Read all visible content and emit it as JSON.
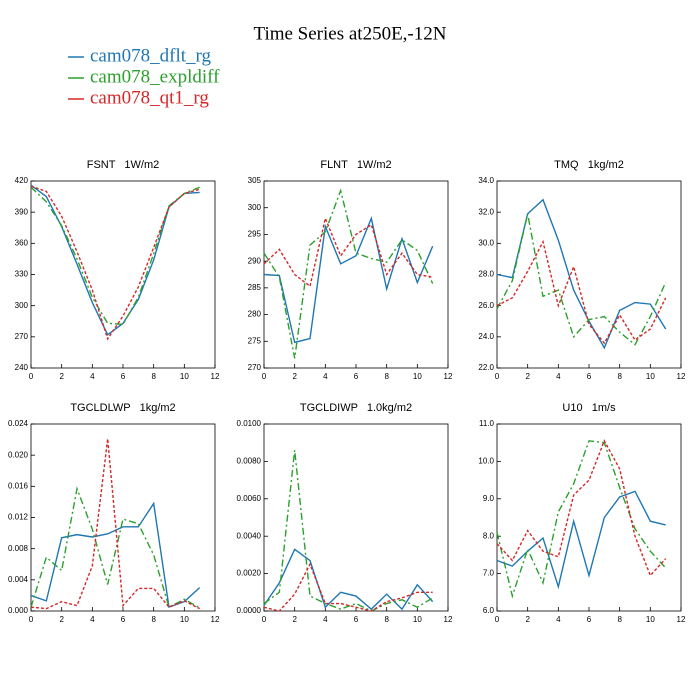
{
  "title": "Time Series at250E,-12N",
  "legend": [
    {
      "name": "cam078_dflt_rg",
      "color": "#1f77b4"
    },
    {
      "name": "cam078_expldiff",
      "color": "#2ca02c"
    },
    {
      "name": "cam078_qt1_rg",
      "color": "#d62728"
    }
  ],
  "chart_data": [
    {
      "type": "line",
      "title": "FSNT   1W/m2",
      "x": [
        0,
        1,
        2,
        3,
        4,
        5,
        6,
        7,
        8,
        9,
        10,
        11
      ],
      "xlim": [
        0,
        12
      ],
      "xticks": [
        0,
        2,
        4,
        6,
        8,
        10,
        12
      ],
      "ylim": [
        240,
        420
      ],
      "yticks": [
        240,
        270,
        300,
        330,
        360,
        390,
        420
      ],
      "series": [
        {
          "color": "#1f77b4",
          "values": [
            416,
            405,
            376,
            340,
            303,
            272,
            283,
            306,
            344,
            395,
            408,
            409
          ]
        },
        {
          "color": "#2ca02c",
          "values": [
            414,
            400,
            377,
            345,
            308,
            283,
            282,
            308,
            350,
            396,
            408,
            414
          ]
        },
        {
          "color": "#d62728",
          "values": [
            415,
            410,
            386,
            352,
            315,
            268,
            290,
            318,
            356,
            395,
            408,
            412
          ]
        }
      ]
    },
    {
      "type": "line",
      "title": "FLNT   1W/m2",
      "x": [
        0,
        1,
        2,
        3,
        4,
        5,
        6,
        7,
        8,
        9,
        10,
        11
      ],
      "xlim": [
        0,
        12
      ],
      "xticks": [
        0,
        2,
        4,
        6,
        8,
        10,
        12
      ],
      "ylim": [
        270,
        305
      ],
      "yticks": [
        270,
        275,
        280,
        285,
        290,
        295,
        300,
        305
      ],
      "series": [
        {
          "color": "#1f77b4",
          "values": [
            287.5,
            287.3,
            274.8,
            275.5,
            296.5,
            289.5,
            291,
            298,
            284.8,
            294.2,
            286,
            292.8
          ]
        },
        {
          "color": "#2ca02c",
          "values": [
            291.5,
            287,
            271.8,
            293,
            295.5,
            303.2,
            291.5,
            290.5,
            289.8,
            294,
            292,
            285.8
          ]
        },
        {
          "color": "#d62728",
          "values": [
            289.5,
            292.2,
            287.5,
            285.3,
            298,
            291,
            295,
            296.8,
            287.5,
            291.5,
            287.5,
            287
          ]
        }
      ]
    },
    {
      "type": "line",
      "title": "TMQ   1kg/m2",
      "x": [
        0,
        1,
        2,
        3,
        4,
        5,
        6,
        7,
        8,
        9,
        10,
        11
      ],
      "xlim": [
        0,
        12
      ],
      "xticks": [
        0,
        2,
        4,
        6,
        8,
        10,
        12
      ],
      "ylim": [
        22,
        34
      ],
      "yticks": [
        {
          "value": 22,
          "label": "22.0"
        },
        {
          "value": 24,
          "label": "24.0"
        },
        {
          "value": 26,
          "label": "26.0"
        },
        {
          "value": 28,
          "label": "28.0"
        },
        {
          "value": 30,
          "label": "30.0"
        },
        {
          "value": 32,
          "label": "32.0"
        },
        {
          "value": 34,
          "label": "34.0"
        }
      ],
      "series": [
        {
          "color": "#1f77b4",
          "values": [
            28.0,
            27.8,
            31.9,
            32.8,
            30.2,
            27.0,
            25.0,
            23.3,
            25.7,
            26.2,
            26.1,
            24.5
          ]
        },
        {
          "color": "#2ca02c",
          "values": [
            25.8,
            27.6,
            31.9,
            26.6,
            27.0,
            24.0,
            25.1,
            25.3,
            24.3,
            23.5,
            25.3,
            27.5
          ]
        },
        {
          "color": "#d62728",
          "values": [
            26.0,
            26.5,
            28.2,
            30.1,
            26.0,
            28.5,
            24.8,
            23.6,
            25.4,
            23.8,
            24.5,
            26.5
          ]
        }
      ]
    },
    {
      "type": "line",
      "title": "TGCLDLWP   1kg/m2",
      "x": [
        0,
        1,
        2,
        3,
        4,
        5,
        6,
        7,
        8,
        9,
        10,
        11
      ],
      "xlim": [
        0,
        12
      ],
      "xticks": [
        0,
        2,
        4,
        6,
        8,
        10,
        12
      ],
      "ylim": [
        0,
        0.024
      ],
      "yticks": [
        {
          "value": 0,
          "label": "0.000"
        },
        {
          "value": 0.004,
          "label": "0.004"
        },
        {
          "value": 0.008,
          "label": "0.008"
        },
        {
          "value": 0.012,
          "label": "0.012"
        },
        {
          "value": 0.016,
          "label": "0.016"
        },
        {
          "value": 0.02,
          "label": "0.020"
        },
        {
          "value": 0.024,
          "label": "0.024"
        }
      ],
      "series": [
        {
          "color": "#1f77b4",
          "values": [
            0.002,
            0.0013,
            0.0094,
            0.0098,
            0.0095,
            0.0099,
            0.0108,
            0.0108,
            0.0138,
            0.0005,
            0.0012,
            0.003
          ]
        },
        {
          "color": "#2ca02c",
          "values": [
            0.0005,
            0.0069,
            0.0052,
            0.0157,
            0.0105,
            0.0034,
            0.0118,
            0.0112,
            0.0072,
            0.0005,
            0.0015,
            0.0004
          ]
        },
        {
          "color": "#d62728",
          "values": [
            0.0005,
            0.0003,
            0.0012,
            0.0007,
            0.0058,
            0.0221,
            0.0007,
            0.0029,
            0.0029,
            0.0005,
            0.0013,
            0.0003
          ]
        }
      ]
    },
    {
      "type": "line",
      "title": "TGCLDIWP   1.0kg/m2",
      "x": [
        0,
        1,
        2,
        3,
        4,
        5,
        6,
        7,
        8,
        9,
        10,
        11
      ],
      "xlim": [
        0,
        12
      ],
      "xticks": [
        0,
        2,
        4,
        6,
        8,
        10,
        12
      ],
      "ylim": [
        0,
        0.01
      ],
      "yticks": [
        {
          "value": 0,
          "label": "0.0000"
        },
        {
          "value": 0.002,
          "label": "0.0020"
        },
        {
          "value": 0.004,
          "label": "0.0040"
        },
        {
          "value": 0.006,
          "label": "0.0060"
        },
        {
          "value": 0.008,
          "label": "0.0080"
        },
        {
          "value": 0.01,
          "label": "0.0100"
        }
      ],
      "series": [
        {
          "color": "#1f77b4",
          "values": [
            0.0003,
            0.0015,
            0.0033,
            0.0027,
            0.0002,
            0.001,
            0.0008,
            0.0001,
            0.0009,
            0.0001,
            0.0014,
            0.0005
          ]
        },
        {
          "color": "#2ca02c",
          "values": [
            0.0004,
            0.001,
            0.0086,
            0.0008,
            0.0004,
            0.0001,
            0.0004,
            0,
            0.0004,
            0.0006,
            0.0002,
            0.0007
          ]
        },
        {
          "color": "#d62728",
          "values": [
            0.0002,
            0,
            0.0009,
            0.0025,
            0.0004,
            0.0004,
            0.0002,
            0,
            0.0005,
            0.0007,
            0.001,
            0.001
          ]
        }
      ]
    },
    {
      "type": "line",
      "title": "U10   1m/s",
      "x": [
        0,
        1,
        2,
        3,
        4,
        5,
        6,
        7,
        8,
        9,
        10,
        11
      ],
      "xlim": [
        0,
        12
      ],
      "xticks": [
        0,
        2,
        4,
        6,
        8,
        10,
        12
      ],
      "ylim": [
        6,
        11
      ],
      "yticks": [
        {
          "value": 6,
          "label": "6.0"
        },
        {
          "value": 7,
          "label": "7.0"
        },
        {
          "value": 8,
          "label": "8.0"
        },
        {
          "value": 9,
          "label": "9.0"
        },
        {
          "value": 10,
          "label": "10.0"
        },
        {
          "value": 11,
          "label": "11.0"
        }
      ],
      "series": [
        {
          "color": "#1f77b4",
          "values": [
            7.35,
            7.2,
            7.6,
            7.95,
            6.65,
            8.4,
            6.95,
            8.5,
            9.05,
            9.2,
            8.4,
            8.3
          ]
        },
        {
          "color": "#2ca02c",
          "values": [
            8.1,
            6.4,
            7.65,
            6.75,
            8.65,
            9.4,
            10.55,
            10.5,
            9.3,
            8.2,
            7.6,
            7.15
          ]
        },
        {
          "color": "#d62728",
          "values": [
            7.8,
            7.35,
            8.15,
            7.6,
            7.45,
            9.1,
            9.5,
            10.55,
            9.8,
            8.0,
            6.95,
            7.4
          ]
        }
      ]
    }
  ]
}
